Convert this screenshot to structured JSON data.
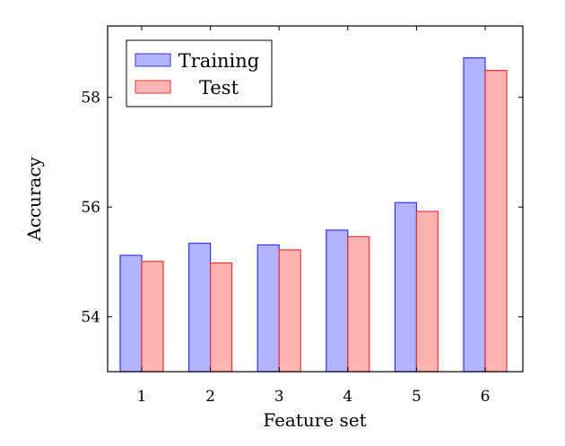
{
  "chart_data": {
    "type": "bar",
    "xlabel": "Feature set",
    "ylabel": "Accuracy",
    "categories": [
      "1",
      "2",
      "3",
      "4",
      "5",
      "6"
    ],
    "series": [
      {
        "name": "Training",
        "values": [
          55.12,
          55.34,
          55.31,
          55.58,
          56.08,
          58.72
        ],
        "fill": "#b3b3ff",
        "stroke": "#3333e6"
      },
      {
        "name": "Test",
        "values": [
          55.01,
          54.98,
          55.22,
          55.46,
          55.92,
          58.49
        ],
        "fill": "#ffb3b3",
        "stroke": "#e63333"
      }
    ],
    "ylim": [
      53.0,
      59.3
    ],
    "yticks": [
      "54",
      "56",
      "58"
    ],
    "grid": false,
    "legend_position": "top-left"
  }
}
